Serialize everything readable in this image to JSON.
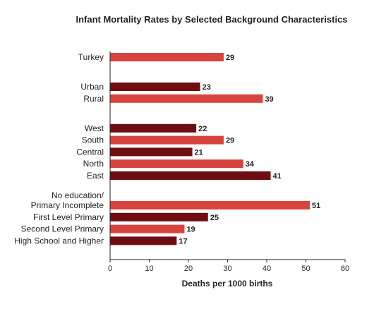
{
  "chart_data": {
    "type": "bar",
    "orientation": "horizontal",
    "title": "Infant Mortality Rates by Selected Background Characteristics",
    "xlabel": "Deaths per 1000 births",
    "ylabel": "",
    "xlim": [
      0,
      60
    ],
    "xticks": [
      "0",
      "10",
      "20",
      "30",
      "40",
      "50",
      "60"
    ],
    "grid": false,
    "legend": "none",
    "colors": {
      "light": "#d7443e",
      "dark": "#6e0e12"
    },
    "groups": [
      {
        "bars": [
          {
            "label": [
              "Turkey"
            ],
            "value": 29,
            "shade": "light"
          }
        ]
      },
      {
        "bars": [
          {
            "label": [
              "Urban"
            ],
            "value": 23,
            "shade": "dark"
          },
          {
            "label": [
              "Rural"
            ],
            "value": 39,
            "shade": "light"
          }
        ]
      },
      {
        "bars": [
          {
            "label": [
              "West"
            ],
            "value": 22,
            "shade": "dark"
          },
          {
            "label": [
              "South"
            ],
            "value": 29,
            "shade": "light"
          },
          {
            "label": [
              "Central"
            ],
            "value": 21,
            "shade": "dark"
          },
          {
            "label": [
              "North"
            ],
            "value": 34,
            "shade": "light"
          },
          {
            "label": [
              "East"
            ],
            "value": 41,
            "shade": "dark"
          }
        ]
      },
      {
        "bars": [
          {
            "label": [
              "No education/",
              "Primary Incomplete"
            ],
            "value": 51,
            "shade": "light"
          },
          {
            "label": [
              "First Level Primary"
            ],
            "value": 25,
            "shade": "dark"
          },
          {
            "label": [
              "Second Level Primary"
            ],
            "value": 19,
            "shade": "light"
          },
          {
            "label": [
              "High School and Higher"
            ],
            "value": 17,
            "shade": "dark"
          }
        ]
      }
    ]
  }
}
